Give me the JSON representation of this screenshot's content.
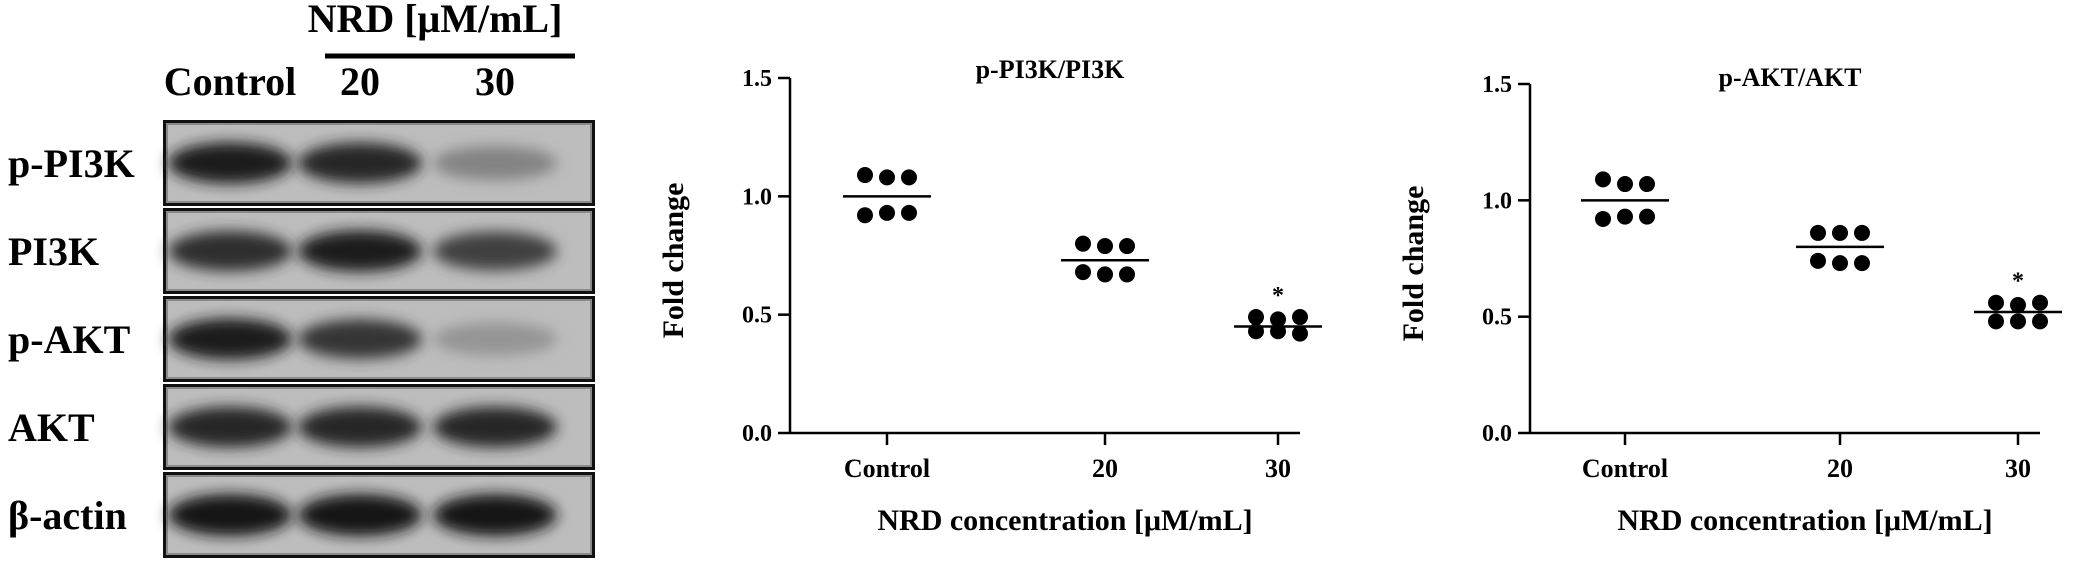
{
  "western_blot": {
    "treatment_header": "NRD [μM/mL]",
    "lane_labels": [
      "Control",
      "20",
      "30"
    ],
    "rows": [
      {
        "label": "p-PI3K",
        "band_intensity": [
          0.95,
          0.9,
          0.35
        ]
      },
      {
        "label": "PI3K",
        "band_intensity": [
          0.85,
          0.95,
          0.75
        ]
      },
      {
        "label": "p-AKT",
        "band_intensity": [
          0.95,
          0.8,
          0.25
        ]
      },
      {
        "label": "AKT",
        "band_intensity": [
          0.9,
          0.9,
          0.9
        ]
      },
      {
        "label": "β-actin",
        "band_intensity": [
          1.0,
          1.0,
          1.0
        ]
      }
    ]
  },
  "chart_data": [
    {
      "type": "scatter",
      "title": "p-PI3K/PI3K",
      "xlabel": "NRD concentration [μM/mL]",
      "ylabel": "Fold change",
      "categories": [
        "Control",
        "20",
        "30"
      ],
      "ylim": [
        0,
        1.5
      ],
      "yticks": [
        "0.0",
        "0.5",
        "1.0",
        "1.5"
      ],
      "points": [
        [
          1.09,
          1.08,
          1.08,
          0.92,
          0.93,
          0.93
        ],
        [
          0.8,
          0.79,
          0.79,
          0.68,
          0.67,
          0.67
        ],
        [
          0.49,
          0.48,
          0.49,
          0.43,
          0.43,
          0.42
        ]
      ],
      "medians": [
        1.0,
        0.73,
        0.45
      ],
      "annotations": [
        {
          "category": "30",
          "text": "*"
        }
      ],
      "grid": false
    },
    {
      "type": "scatter",
      "title": "p-AKT/AKT",
      "xlabel": "NRD concentration [μM/mL]",
      "ylabel": "Fold change",
      "categories": [
        "Control",
        "20",
        "30"
      ],
      "ylim": [
        0,
        1.5
      ],
      "yticks": [
        "0.0",
        "0.5",
        "1.0",
        "1.5"
      ],
      "points": [
        [
          1.09,
          1.07,
          1.07,
          0.92,
          0.93,
          0.93
        ],
        [
          0.86,
          0.86,
          0.86,
          0.74,
          0.73,
          0.73
        ],
        [
          0.56,
          0.55,
          0.56,
          0.48,
          0.48,
          0.48
        ]
      ],
      "medians": [
        1.0,
        0.8,
        0.52
      ],
      "annotations": [
        {
          "category": "30",
          "text": "*"
        }
      ],
      "grid": false
    }
  ]
}
